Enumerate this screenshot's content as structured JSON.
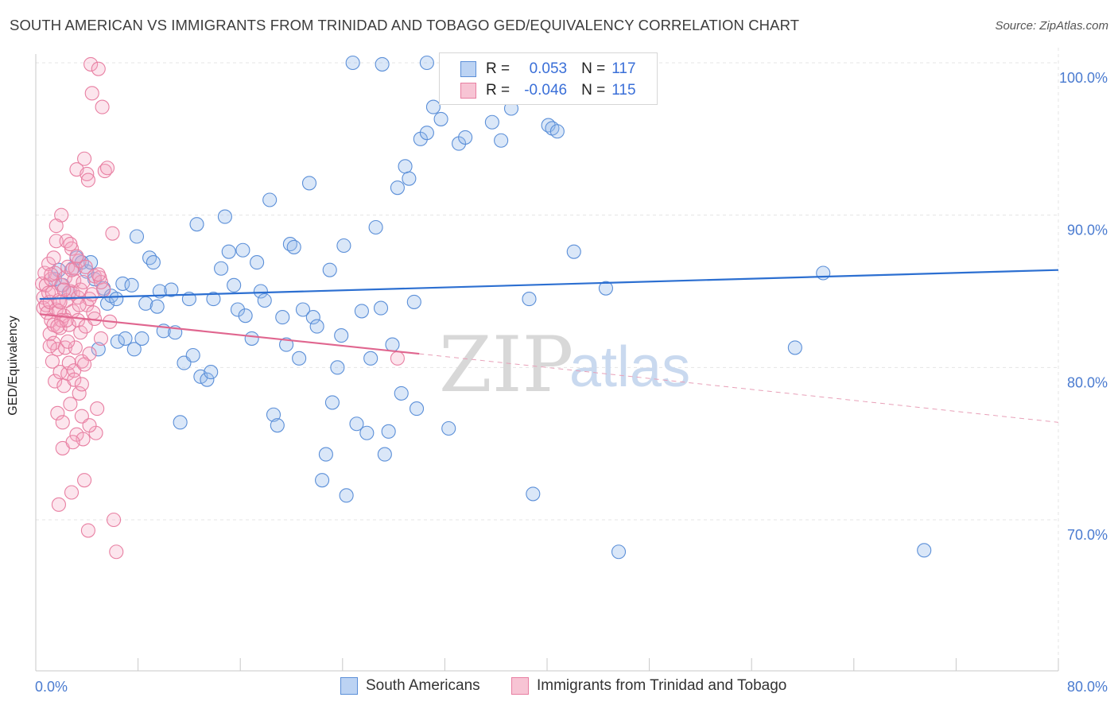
{
  "title": "SOUTH AMERICAN VS IMMIGRANTS FROM TRINIDAD AND TOBAGO GED/EQUIVALENCY CORRELATION CHART",
  "source": "Source: ZipAtlas.com",
  "watermark": {
    "zip": "ZIP",
    "atlas": "atlas"
  },
  "legend": [
    {
      "name": "South Americans",
      "r_label": "R =",
      "r_value": "0.053",
      "n_label": "N =",
      "n_value": "117",
      "color": "#5b8fd8",
      "fill": "#bcd3f3"
    },
    {
      "name": "Immigrants from Trinidad and Tobago",
      "r_label": "R =",
      "r_value": "-0.046",
      "n_label": "N =",
      "n_value": "115",
      "color": "#e87fa2",
      "fill": "#f7c4d4"
    }
  ],
  "chart_data": {
    "type": "scatter",
    "title": "SOUTH AMERICAN VS IMMIGRANTS FROM TRINIDAD AND TOBAGO GED/EQUIVALENCY CORRELATION CHART",
    "xlabel": "",
    "ylabel": "GED/Equivalency",
    "xlim": [
      0,
      80
    ],
    "ylim": [
      60,
      101.5
    ],
    "x_tick_labels": [
      "0.0%",
      "80.0%"
    ],
    "y_ticks": [
      70,
      80,
      90,
      100
    ],
    "y_tick_labels": [
      "70.0%",
      "80.0%",
      "90.0%",
      "100.0%"
    ],
    "grid": true,
    "series": [
      {
        "name": "South Americans",
        "color": "#5b8fd8",
        "trend": {
          "x": [
            0.3,
            80
          ],
          "y": [
            84.5,
            86.4
          ]
        },
        "points": [
          [
            1.5,
            85.8
          ],
          [
            1.8,
            86.4
          ],
          [
            2.1,
            85.4
          ],
          [
            2.6,
            84.9
          ],
          [
            2.9,
            86.5
          ],
          [
            3.2,
            87.2
          ],
          [
            3.6,
            86.9
          ],
          [
            4.0,
            86.3
          ],
          [
            4.3,
            86.9
          ],
          [
            4.6,
            85.8
          ],
          [
            4.9,
            81.2
          ],
          [
            5.3,
            85.2
          ],
          [
            5.6,
            84.2
          ],
          [
            5.9,
            84.7
          ],
          [
            6.3,
            84.5
          ],
          [
            6.4,
            81.7
          ],
          [
            6.8,
            85.5
          ],
          [
            7.0,
            81.9
          ],
          [
            7.5,
            85.4
          ],
          [
            7.7,
            81.2
          ],
          [
            7.9,
            88.6
          ],
          [
            8.3,
            81.9
          ],
          [
            8.6,
            84.2
          ],
          [
            8.9,
            87.2
          ],
          [
            9.2,
            86.9
          ],
          [
            9.5,
            84.0
          ],
          [
            9.7,
            85.0
          ],
          [
            10.0,
            82.4
          ],
          [
            10.6,
            85.1
          ],
          [
            10.9,
            82.3
          ],
          [
            11.3,
            76.4
          ],
          [
            11.6,
            80.3
          ],
          [
            12.0,
            84.5
          ],
          [
            12.3,
            80.8
          ],
          [
            12.6,
            89.4
          ],
          [
            12.9,
            79.4
          ],
          [
            13.4,
            79.2
          ],
          [
            13.7,
            79.7
          ],
          [
            13.9,
            84.5
          ],
          [
            14.5,
            86.5
          ],
          [
            14.8,
            89.9
          ],
          [
            15.1,
            87.6
          ],
          [
            15.5,
            85.4
          ],
          [
            15.8,
            83.8
          ],
          [
            16.2,
            87.7
          ],
          [
            16.4,
            83.4
          ],
          [
            16.9,
            81.9
          ],
          [
            17.3,
            86.9
          ],
          [
            17.6,
            85.0
          ],
          [
            17.9,
            84.4
          ],
          [
            18.3,
            91.0
          ],
          [
            18.6,
            76.9
          ],
          [
            18.9,
            76.2
          ],
          [
            19.3,
            83.3
          ],
          [
            19.6,
            81.5
          ],
          [
            19.9,
            88.1
          ],
          [
            20.2,
            87.9
          ],
          [
            20.6,
            80.6
          ],
          [
            20.9,
            83.8
          ],
          [
            21.4,
            92.1
          ],
          [
            21.7,
            83.3
          ],
          [
            22.0,
            82.7
          ],
          [
            22.4,
            72.6
          ],
          [
            22.7,
            74.3
          ],
          [
            23.0,
            86.4
          ],
          [
            23.2,
            77.7
          ],
          [
            23.6,
            80.0
          ],
          [
            23.9,
            82.1
          ],
          [
            24.1,
            88.0
          ],
          [
            24.3,
            71.6
          ],
          [
            25.1,
            76.3
          ],
          [
            25.5,
            83.7
          ],
          [
            25.9,
            75.7
          ],
          [
            26.2,
            80.6
          ],
          [
            26.6,
            89.2
          ],
          [
            27.0,
            83.9
          ],
          [
            27.3,
            74.3
          ],
          [
            27.6,
            75.8
          ],
          [
            27.9,
            81.5
          ],
          [
            28.3,
            91.8
          ],
          [
            28.6,
            78.3
          ],
          [
            28.9,
            93.2
          ],
          [
            29.2,
            92.4
          ],
          [
            29.6,
            84.3
          ],
          [
            29.8,
            77.3
          ],
          [
            30.1,
            95.0
          ],
          [
            30.6,
            95.4
          ],
          [
            31.1,
            97.1
          ],
          [
            31.7,
            96.3
          ],
          [
            32.3,
            76.0
          ],
          [
            33.1,
            94.7
          ],
          [
            33.6,
            95.1
          ],
          [
            35.7,
            96.1
          ],
          [
            36.4,
            94.9
          ],
          [
            37.2,
            97.0
          ],
          [
            38.6,
            84.5
          ],
          [
            38.9,
            71.7
          ],
          [
            40.1,
            95.9
          ],
          [
            40.4,
            95.7
          ],
          [
            40.8,
            95.5
          ],
          [
            42.1,
            87.6
          ],
          [
            44.6,
            85.2
          ],
          [
            45.6,
            67.9
          ],
          [
            59.4,
            81.3
          ],
          [
            61.6,
            86.2
          ],
          [
            69.5,
            68.0
          ],
          [
            30.6,
            100.0
          ],
          [
            27.1,
            99.9
          ],
          [
            24.8,
            100.0
          ],
          [
            38.3,
            99.9
          ]
        ]
      },
      {
        "name": "Immigrants from Trinidad and Tobago",
        "color": "#e87fa2",
        "trend": {
          "x": [
            0.3,
            30
          ],
          "y": [
            83.5,
            80.9
          ]
        },
        "trend_extension": {
          "x": [
            30,
            80
          ],
          "y": [
            80.9,
            76.4
          ]
        },
        "points": [
          [
            0.5,
            85.5
          ],
          [
            0.6,
            84.6
          ],
          [
            0.6,
            83.9
          ],
          [
            0.7,
            86.2
          ],
          [
            0.8,
            84.1
          ],
          [
            0.8,
            85.4
          ],
          [
            0.9,
            83.6
          ],
          [
            1.0,
            84.9
          ],
          [
            1.0,
            86.8
          ],
          [
            1.1,
            82.2
          ],
          [
            1.1,
            84.3
          ],
          [
            1.2,
            83.1
          ],
          [
            1.2,
            85.8
          ],
          [
            1.3,
            80.4
          ],
          [
            1.3,
            84.9
          ],
          [
            1.4,
            81.6
          ],
          [
            1.4,
            82.8
          ],
          [
            1.5,
            79.1
          ],
          [
            1.5,
            86.2
          ],
          [
            1.6,
            83.8
          ],
          [
            1.6,
            88.3
          ],
          [
            1.7,
            81.2
          ],
          [
            1.7,
            77.0
          ],
          [
            1.8,
            84.4
          ],
          [
            1.8,
            71.0
          ],
          [
            1.9,
            79.7
          ],
          [
            1.9,
            82.6
          ],
          [
            2.0,
            85.4
          ],
          [
            2.0,
            90.0
          ],
          [
            2.1,
            76.4
          ],
          [
            2.1,
            74.7
          ],
          [
            2.2,
            78.8
          ],
          [
            2.2,
            83.4
          ],
          [
            2.3,
            85.9
          ],
          [
            2.3,
            81.3
          ],
          [
            2.4,
            88.3
          ],
          [
            2.4,
            84.4
          ],
          [
            2.5,
            79.6
          ],
          [
            2.5,
            86.6
          ],
          [
            2.6,
            80.3
          ],
          [
            2.6,
            82.8
          ],
          [
            2.7,
            77.6
          ],
          [
            2.7,
            85.0
          ],
          [
            2.8,
            71.8
          ],
          [
            2.8,
            87.8
          ],
          [
            2.9,
            83.7
          ],
          [
            2.9,
            84.9
          ],
          [
            3.0,
            79.8
          ],
          [
            3.0,
            85.7
          ],
          [
            3.1,
            86.5
          ],
          [
            3.1,
            81.3
          ],
          [
            3.2,
            93.0
          ],
          [
            3.2,
            75.6
          ],
          [
            3.3,
            83.1
          ],
          [
            3.3,
            84.6
          ],
          [
            3.4,
            78.3
          ],
          [
            3.4,
            87.0
          ],
          [
            3.5,
            82.3
          ],
          [
            3.5,
            85.1
          ],
          [
            3.6,
            76.8
          ],
          [
            3.6,
            80.4
          ],
          [
            3.7,
            85.6
          ],
          [
            3.7,
            75.3
          ],
          [
            3.8,
            93.7
          ],
          [
            3.8,
            72.6
          ],
          [
            3.9,
            86.6
          ],
          [
            3.9,
            82.7
          ],
          [
            4.0,
            92.7
          ],
          [
            4.0,
            84.1
          ],
          [
            4.1,
            92.3
          ],
          [
            4.1,
            69.3
          ],
          [
            4.2,
            84.5
          ],
          [
            4.2,
            80.9
          ],
          [
            4.3,
            99.9
          ],
          [
            4.4,
            98.0
          ],
          [
            4.5,
            83.6
          ],
          [
            4.6,
            86.0
          ],
          [
            4.7,
            75.7
          ],
          [
            4.8,
            77.3
          ],
          [
            4.9,
            99.6
          ],
          [
            5.0,
            85.9
          ],
          [
            5.1,
            81.9
          ],
          [
            5.2,
            97.1
          ],
          [
            5.3,
            85.1
          ],
          [
            5.4,
            92.9
          ],
          [
            5.6,
            93.1
          ],
          [
            5.8,
            83.0
          ],
          [
            6.0,
            88.8
          ],
          [
            6.1,
            70.0
          ],
          [
            6.3,
            67.9
          ],
          [
            2.8,
            86.4
          ],
          [
            1.8,
            83.7
          ],
          [
            2.5,
            81.7
          ],
          [
            3.4,
            84.1
          ],
          [
            4.2,
            76.2
          ],
          [
            5.1,
            85.6
          ],
          [
            1.4,
            87.2
          ],
          [
            2.0,
            83.1
          ],
          [
            3.0,
            79.2
          ],
          [
            4.6,
            83.2
          ],
          [
            1.6,
            89.3
          ],
          [
            1.2,
            86.1
          ],
          [
            2.2,
            85.1
          ],
          [
            3.8,
            80.2
          ],
          [
            2.7,
            88.1
          ],
          [
            1.9,
            84.3
          ],
          [
            1.1,
            81.4
          ],
          [
            3.6,
            78.9
          ],
          [
            4.9,
            86.1
          ],
          [
            28.3,
            80.6
          ],
          [
            2.4,
            83.1
          ],
          [
            3.2,
            87.3
          ],
          [
            1.7,
            82.7
          ],
          [
            4.4,
            84.8
          ],
          [
            2.9,
            75.1
          ]
        ]
      }
    ]
  }
}
